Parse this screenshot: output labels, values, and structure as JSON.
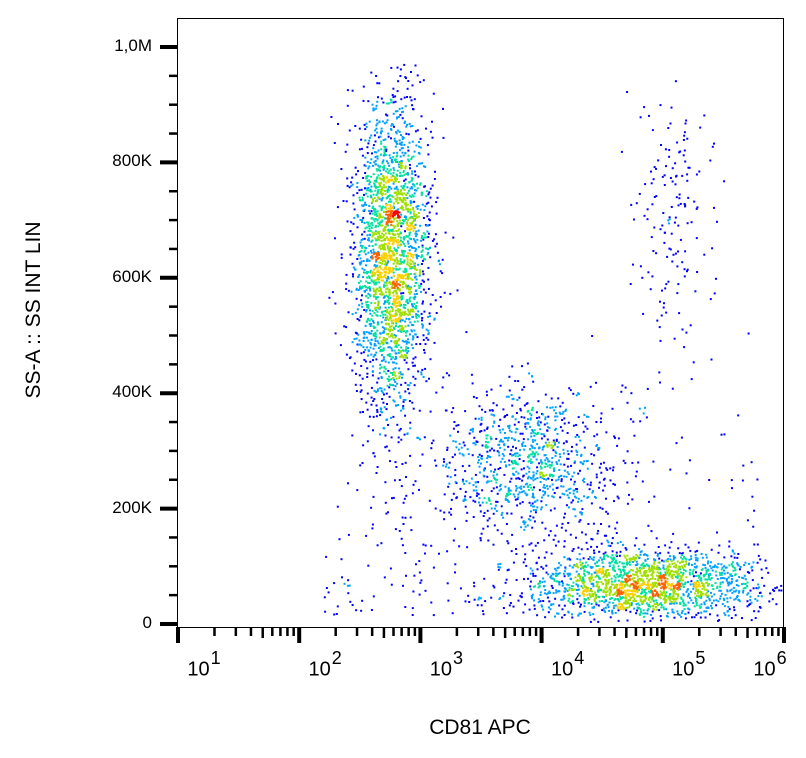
{
  "chart_data": {
    "type": "scatter",
    "subtype": "density-dot-plot",
    "title": "",
    "xlabel": "CD81 APC",
    "ylabel": "SS-A :: SS INT LIN",
    "x_scale": "log",
    "xlim": [
      10,
      1000000
    ],
    "ylim": [
      0,
      1000000
    ],
    "x_ticks": [
      {
        "base": "10",
        "exp": "1"
      },
      {
        "base": "10",
        "exp": "2"
      },
      {
        "base": "10",
        "exp": "3"
      },
      {
        "base": "10",
        "exp": "4"
      },
      {
        "base": "10",
        "exp": "5"
      },
      {
        "base": "10",
        "exp": "6"
      }
    ],
    "y_ticks": [
      "0",
      "200K",
      "400K",
      "600K",
      "800K",
      "1,0M"
    ],
    "y_tick_values": [
      0,
      200000,
      400000,
      600000,
      800000,
      1000000
    ],
    "grid": false,
    "legend": "none",
    "colormap": [
      "#0000ff",
      "#00a0ff",
      "#00e0a0",
      "#a0e000",
      "#ffd000",
      "#ff6000",
      "#ff0000"
    ],
    "populations": [
      {
        "x_center": 560,
        "y_center": 640000,
        "x_range": [
          200,
          1000
        ],
        "y_range": [
          380000,
          970000
        ],
        "density": "high"
      },
      {
        "x_center": 70000,
        "y_center": 70000,
        "x_range": [
          5000,
          600000
        ],
        "y_range": [
          20000,
          140000
        ],
        "density": "high"
      },
      {
        "x_center": 8000,
        "y_center": 280000,
        "x_range": [
          1500,
          60000
        ],
        "y_range": [
          150000,
          420000
        ],
        "density": "low"
      },
      {
        "x_center": 120000,
        "y_center": 720000,
        "x_range": [
          50000,
          250000
        ],
        "y_range": [
          450000,
          960000
        ],
        "density": "sparse"
      }
    ]
  }
}
